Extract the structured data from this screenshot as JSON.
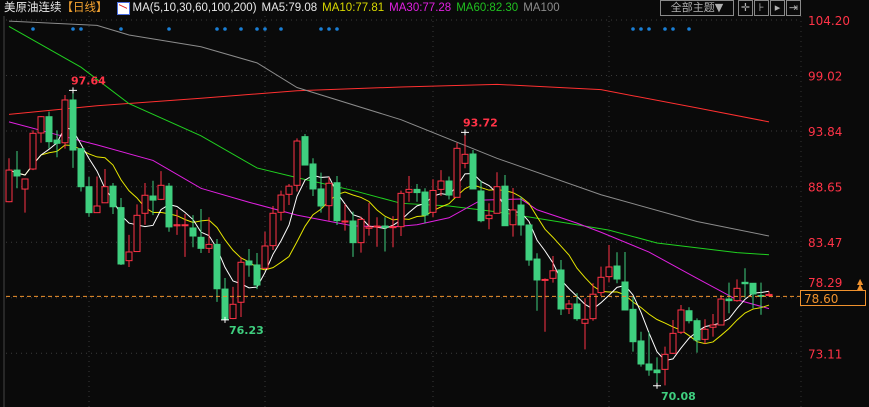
{
  "header": {
    "instrument": "美原油连续",
    "period": "【日线】",
    "ma_params": "MA(5,10,30,60,100,200)",
    "ma5": "MA5:79.08",
    "ma10": "MA10:77.81",
    "ma30": "MA30:77.28",
    "ma60": "MA60:82.30",
    "ma100": "MA100"
  },
  "toolbar": {
    "theme_button": "全部主题▼",
    "icons": [
      "crosshair-icon",
      "zoom-range-icon",
      "play-step-icon",
      "move-right-icon"
    ]
  },
  "current_price": "78.60",
  "colors": {
    "up": "#ff3347",
    "down": "#3fcf7f",
    "ma5": "#ffffff",
    "ma10": "#e6e600",
    "ma30": "#e020e0",
    "ma60": "#20d020",
    "ma100": "#8c8c8c",
    "ma200": "#ff3030",
    "axis_text": "#ff3347",
    "current_line": "#f0922e",
    "event_dot": "#1a7fd6",
    "background": "#0a0a0a"
  },
  "chart_data": {
    "type": "candlestick",
    "ylim": [
      68.5,
      104.5
    ],
    "yticks": [
      "104.20",
      "99.02",
      "93.84",
      "88.65",
      "83.47",
      "78.29",
      "73.11"
    ],
    "grid": true,
    "month_separators_at_candle": [
      10,
      32,
      53,
      75
    ],
    "event_dots_at_candle": [
      3,
      8,
      9,
      14,
      20,
      26,
      27,
      29,
      31,
      32,
      34,
      39,
      40,
      41,
      78,
      79,
      80,
      82,
      83,
      85
    ],
    "candles_ohlc": [
      [
        87.25,
        91.3,
        87.2,
        90.2
      ],
      [
        90.2,
        91.98,
        88.5,
        89.65
      ],
      [
        88.43,
        89.4,
        86.23,
        89.37
      ],
      [
        90.3,
        93.9,
        90.2,
        93.63
      ],
      [
        93.66,
        95.25,
        92.75,
        95.18
      ],
      [
        95.18,
        95.65,
        92.2,
        92.85
      ],
      [
        93.0,
        93.9,
        91.4,
        92.7
      ],
      [
        92.75,
        97.2,
        92.2,
        96.74
      ],
      [
        96.74,
        97.64,
        90.4,
        92.07
      ],
      [
        92.2,
        92.2,
        88.2,
        88.65
      ],
      [
        88.65,
        89.55,
        85.85,
        86.23
      ],
      [
        86.23,
        89.6,
        86.2,
        86.85
      ],
      [
        87.15,
        90.3,
        87.15,
        88.65
      ],
      [
        88.7,
        89.0,
        86.1,
        86.78
      ],
      [
        86.7,
        87.6,
        81.35,
        81.44
      ],
      [
        81.75,
        84.15,
        81.16,
        82.56
      ],
      [
        82.6,
        87.0,
        82.6,
        85.98
      ],
      [
        86.17,
        89.0,
        85.1,
        87.85
      ],
      [
        87.78,
        89.2,
        86.0,
        87.4
      ],
      [
        87.47,
        90.1,
        87.4,
        88.78
      ],
      [
        88.7,
        89.0,
        84.45,
        84.9
      ],
      [
        85.0,
        86.5,
        84.15,
        85.1
      ],
      [
        85.05,
        86.1,
        82.1,
        85.1
      ],
      [
        84.8,
        86.0,
        83.0,
        84.05
      ],
      [
        83.93,
        86.57,
        82.47,
        82.9
      ],
      [
        82.9,
        85.8,
        82.47,
        83.27
      ],
      [
        83.27,
        83.77,
        77.9,
        79.13
      ],
      [
        79.1,
        80.13,
        76.23,
        76.3
      ],
      [
        76.35,
        79.3,
        76.3,
        77.68
      ],
      [
        77.87,
        82.1,
        76.5,
        81.6
      ],
      [
        81.72,
        82.84,
        80.25,
        81.35
      ],
      [
        81.35,
        82.47,
        79.1,
        79.48
      ],
      [
        81.04,
        84.45,
        81.0,
        83.12
      ],
      [
        83.15,
        86.85,
        82.75,
        86.17
      ],
      [
        86.26,
        88.28,
        85.48,
        87.87
      ],
      [
        87.94,
        88.9,
        86.94,
        88.7
      ],
      [
        88.78,
        93.16,
        88.2,
        92.91
      ],
      [
        93.32,
        93.56,
        90.67,
        90.67
      ],
      [
        90.77,
        91.3,
        87.78,
        88.44
      ],
      [
        88.44,
        89.96,
        86.23,
        86.85
      ],
      [
        86.88,
        89.55,
        85.48,
        88.97
      ],
      [
        89.02,
        89.65,
        85.08,
        85.48
      ],
      [
        85.4,
        87.04,
        84.55,
        85.45
      ],
      [
        85.45,
        86.32,
        82.1,
        83.43
      ],
      [
        83.43,
        85.85,
        82.5,
        85.6
      ],
      [
        84.77,
        87.13,
        84.08,
        84.9
      ],
      [
        84.9,
        85.8,
        83.05,
        84.98
      ],
      [
        84.98,
        85.8,
        82.6,
        84.86
      ],
      [
        84.88,
        85.9,
        83.0,
        84.92
      ],
      [
        84.92,
        88.28,
        84.05,
        88.03
      ],
      [
        88.13,
        89.65,
        87.25,
        88.4
      ],
      [
        88.4,
        88.9,
        87.25,
        88.1
      ],
      [
        88.15,
        88.5,
        85.23,
        86.01
      ],
      [
        86.26,
        89.34,
        85.8,
        88.3
      ],
      [
        88.4,
        90.2,
        87.78,
        89.18
      ],
      [
        89.18,
        89.6,
        87.47,
        87.87
      ],
      [
        87.66,
        92.75,
        87.66,
        92.23
      ],
      [
        90.83,
        93.72,
        90.37,
        91.67
      ],
      [
        91.7,
        92.07,
        88.44,
        88.44
      ],
      [
        88.25,
        89.21,
        85.33,
        85.48
      ],
      [
        85.67,
        87.1,
        84.68,
        85.98
      ],
      [
        86.17,
        90.0,
        86.17,
        88.65
      ],
      [
        88.7,
        89.74,
        85.0,
        85.01
      ],
      [
        85.1,
        88.53,
        83.99,
        86.48
      ],
      [
        86.94,
        87.72,
        84.08,
        85.08
      ],
      [
        85.08,
        85.08,
        81.28,
        81.81
      ],
      [
        81.9,
        82.44,
        77.08,
        79.95
      ],
      [
        79.95,
        80.1,
        75.12,
        80.0
      ],
      [
        80.1,
        82.18,
        79.7,
        80.81
      ],
      [
        80.88,
        81.81,
        76.68,
        77.24
      ],
      [
        77.27,
        78.08,
        76.77,
        77.71
      ],
      [
        77.71,
        78.72,
        76.15,
        76.34
      ],
      [
        75.91,
        78.24,
        73.48,
        76.28
      ],
      [
        76.34,
        79.64,
        76.15,
        78.62
      ],
      [
        78.77,
        81.19,
        78.45,
        80.2
      ],
      [
        80.26,
        83.21,
        79.73,
        81.16
      ],
      [
        81.25,
        82.53,
        79.64,
        80.04
      ],
      [
        79.76,
        82.56,
        77.15,
        77.15
      ],
      [
        77.21,
        78.39,
        73.26,
        74.19
      ],
      [
        74.26,
        75.12,
        71.87,
        72.11
      ],
      [
        72.11,
        75.12,
        71.02,
        71.55
      ],
      [
        71.55,
        72.73,
        70.08,
        71.3
      ],
      [
        71.61,
        73.73,
        70.12,
        73.01
      ],
      [
        73.11,
        76.21,
        73.04,
        74.97
      ],
      [
        75.07,
        77.61,
        74.91,
        77.15
      ],
      [
        77.08,
        77.4,
        75.9,
        76.15
      ],
      [
        76.15,
        76.37,
        73.17,
        74.35
      ],
      [
        74.41,
        76.28,
        73.98,
        75.35
      ],
      [
        75.54,
        76.77,
        74.66,
        75.75
      ],
      [
        75.75,
        78.55,
        75.75,
        78.17
      ],
      [
        78.17,
        79.7,
        76.84,
        78.02
      ],
      [
        78.02,
        80.0,
        77.92,
        79.17
      ],
      [
        79.73,
        81.04,
        78.29,
        79.6
      ],
      [
        79.64,
        79.64,
        77.3,
        78.64
      ],
      [
        78.5,
        79.7,
        76.7,
        78.45
      ],
      [
        78.5,
        78.9,
        78.4,
        78.6
      ]
    ],
    "moving_averages": {
      "ma30": [
        [
          0,
          94.7
        ],
        [
          6,
          93.5
        ],
        [
          11,
          92.55
        ],
        [
          18,
          91.1
        ],
        [
          24,
          88.5
        ],
        [
          30,
          87.2
        ],
        [
          36,
          86.0
        ],
        [
          43,
          85.0
        ],
        [
          48,
          84.9
        ],
        [
          51,
          85.1
        ],
        [
          55,
          85.75
        ],
        [
          59,
          87.4
        ],
        [
          64,
          87.5
        ],
        [
          66,
          86.5
        ],
        [
          71,
          85.25
        ],
        [
          74,
          84.4
        ],
        [
          80,
          82.55
        ],
        [
          86,
          80.1
        ],
        [
          91,
          78.1
        ],
        [
          95,
          77.28
        ]
      ],
      "ma60": [
        [
          0,
          103.6
        ],
        [
          9,
          99.8
        ],
        [
          15,
          96.4
        ],
        [
          24,
          93.4
        ],
        [
          31,
          90.4
        ],
        [
          36,
          89.5
        ],
        [
          43,
          88.3
        ],
        [
          49,
          87.1
        ],
        [
          55,
          86.85
        ],
        [
          61,
          86.3
        ],
        [
          69,
          85.35
        ],
        [
          75,
          84.6
        ],
        [
          81,
          83.4
        ],
        [
          91,
          82.5
        ],
        [
          95,
          82.3
        ]
      ],
      "ma100": [
        [
          0,
          104.1
        ],
        [
          11,
          103.7
        ],
        [
          15,
          102.8
        ],
        [
          24,
          101.7
        ],
        [
          31,
          100.2
        ],
        [
          36,
          97.9
        ],
        [
          49,
          94.9
        ],
        [
          61,
          91.3
        ],
        [
          74,
          87.9
        ],
        [
          86,
          85.4
        ],
        [
          95,
          84.05
        ]
      ],
      "ma200": [
        [
          0,
          95.4
        ],
        [
          11,
          96.2
        ],
        [
          24,
          96.9
        ],
        [
          36,
          97.6
        ],
        [
          49,
          97.95
        ],
        [
          61,
          98.2
        ],
        [
          74,
          97.7
        ],
        [
          86,
          96.0
        ],
        [
          95,
          94.7
        ]
      ]
    },
    "annotations": [
      {
        "text": "97.64",
        "candle": 8,
        "price": 97.64,
        "kind": "high"
      },
      {
        "text": "93.72",
        "candle": 57,
        "price": 93.72,
        "kind": "high"
      },
      {
        "text": "76.23",
        "candle": 27,
        "price": 76.23,
        "kind": "low"
      },
      {
        "text": "70.08",
        "candle": 81,
        "price": 70.08,
        "kind": "low"
      }
    ]
  }
}
